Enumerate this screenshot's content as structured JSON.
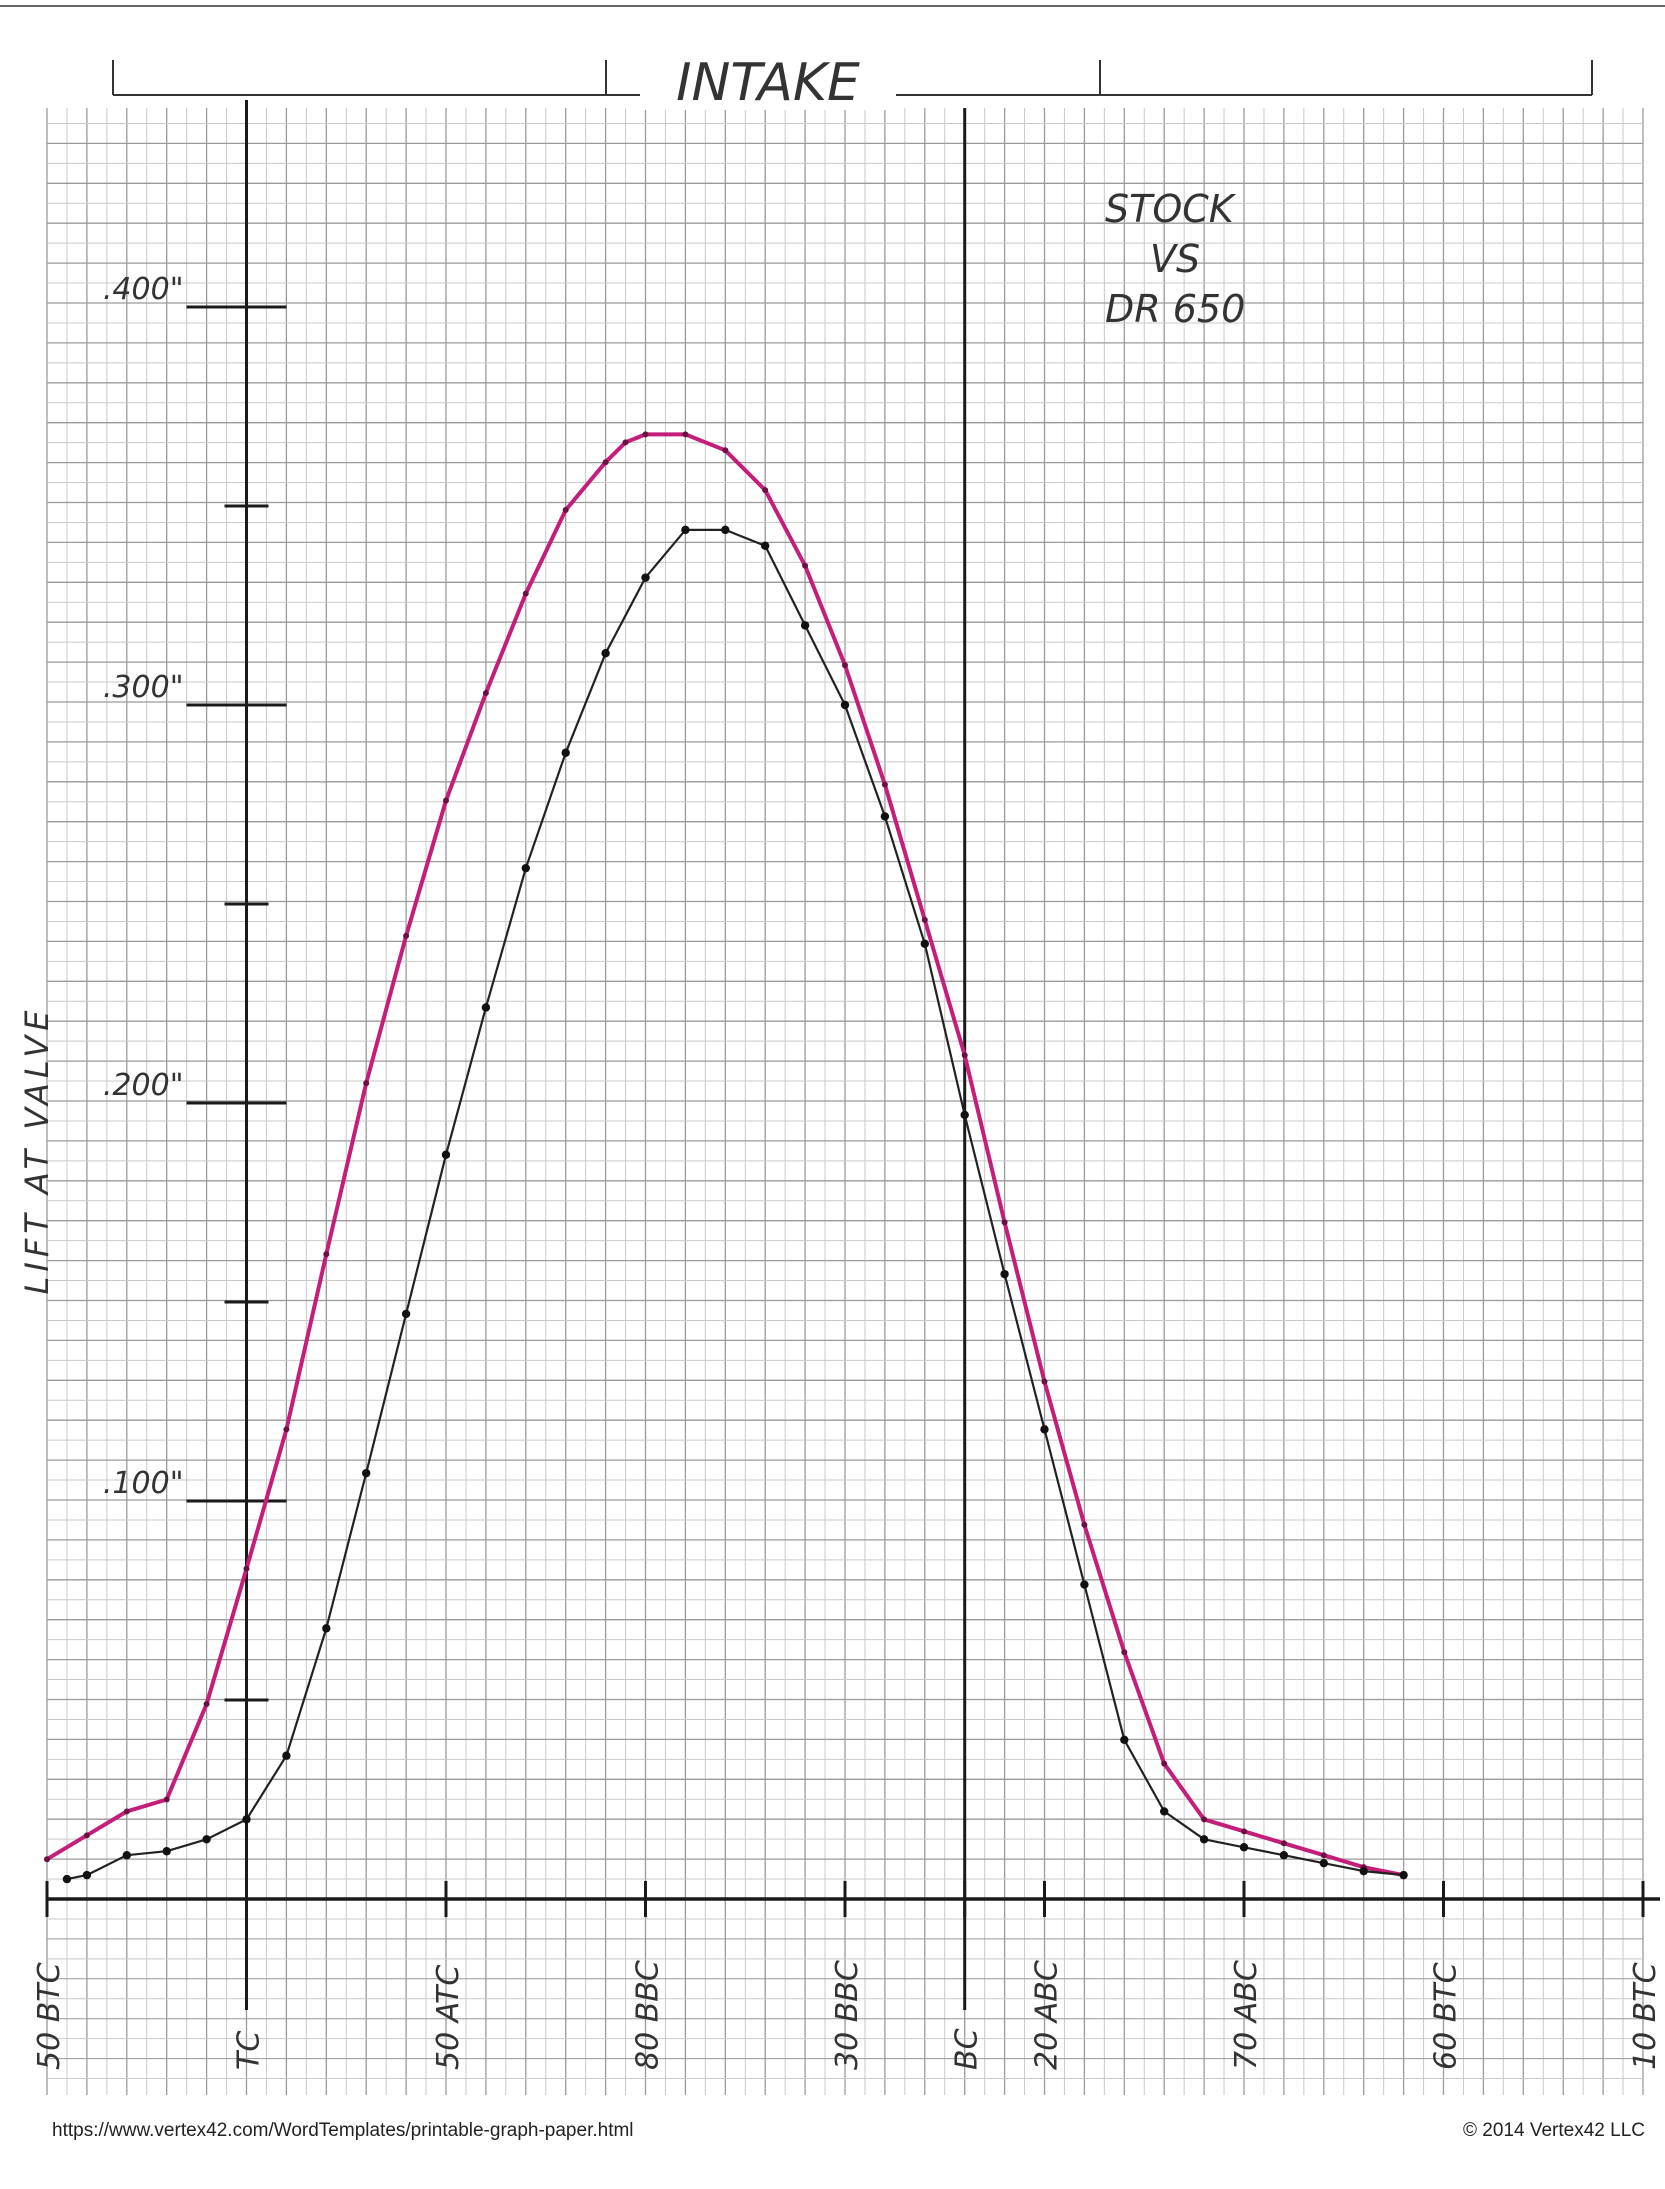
{
  "chart_data": {
    "type": "line",
    "title": "INTAKE",
    "note_lines": [
      "STOCK",
      "VS",
      "DR 650"
    ],
    "ylabel": "LIFT AT VALVE",
    "y_unit": "in",
    "ylim": [
      0,
      0.45
    ],
    "y_ticks": [
      {
        "value": 0.1,
        "label": ".100\""
      },
      {
        "value": 0.2,
        "label": ".200\""
      },
      {
        "value": 0.3,
        "label": ".300\""
      },
      {
        "value": 0.4,
        "label": ".400\""
      }
    ],
    "y_minor_ticks": [
      0.05,
      0.15,
      0.25,
      0.35
    ],
    "x_unit": "crank degrees, intake timeline",
    "xlim": [
      -50,
      350
    ],
    "x_ticks": [
      {
        "value": -50,
        "label": "50 BTC"
      },
      {
        "value": 0,
        "label": "TC"
      },
      {
        "value": 50,
        "label": "50 ATC"
      },
      {
        "value": 100,
        "label": "80 BBC"
      },
      {
        "value": 150,
        "label": "30 BBC"
      },
      {
        "value": 180,
        "label": "BC"
      },
      {
        "value": 200,
        "label": "20 ABC"
      },
      {
        "value": 250,
        "label": "70 ABC"
      },
      {
        "value": 300,
        "label": "60 BTC"
      },
      {
        "value": 350,
        "label": "10 BTC"
      }
    ],
    "reference_lines_x": [
      0,
      180
    ],
    "grid": true,
    "series": [
      {
        "color": "#c41e7a",
        "x": [
          -50,
          -40,
          -30,
          -20,
          -10,
          0,
          10,
          20,
          30,
          40,
          50,
          60,
          70,
          80,
          90,
          95,
          100,
          110,
          120,
          130,
          140,
          150,
          160,
          170,
          180,
          190,
          200,
          210,
          220,
          230,
          240,
          250,
          260,
          270,
          280,
          290
        ],
        "y": [
          0.01,
          0.016,
          0.022,
          0.025,
          0.049,
          0.083,
          0.118,
          0.162,
          0.205,
          0.242,
          0.276,
          0.303,
          0.328,
          0.349,
          0.361,
          0.366,
          0.368,
          0.368,
          0.364,
          0.354,
          0.335,
          0.31,
          0.28,
          0.246,
          0.212,
          0.17,
          0.13,
          0.094,
          0.062,
          0.034,
          0.02,
          0.017,
          0.014,
          0.011,
          0.008,
          0.006
        ]
      },
      {
        "color": "#222222",
        "x": [
          -45,
          -40,
          -30,
          -20,
          -10,
          0,
          10,
          20,
          30,
          40,
          50,
          60,
          70,
          80,
          90,
          100,
          110,
          120,
          130,
          140,
          150,
          160,
          170,
          180,
          190,
          200,
          210,
          220,
          230,
          240,
          250,
          260,
          270,
          280,
          290
        ],
        "y": [
          0.005,
          0.006,
          0.011,
          0.012,
          0.015,
          0.02,
          0.036,
          0.068,
          0.107,
          0.147,
          0.187,
          0.224,
          0.259,
          0.288,
          0.313,
          0.332,
          0.344,
          0.344,
          0.34,
          0.32,
          0.3,
          0.272,
          0.24,
          0.197,
          0.157,
          0.118,
          0.079,
          0.04,
          0.022,
          0.015,
          0.013,
          0.011,
          0.009,
          0.007,
          0.006
        ]
      }
    ]
  },
  "footer": {
    "left": "https://www.vertex42.com/WordTemplates/printable-graph-paper.html",
    "right": "© 2014 Vertex42 LLC"
  }
}
